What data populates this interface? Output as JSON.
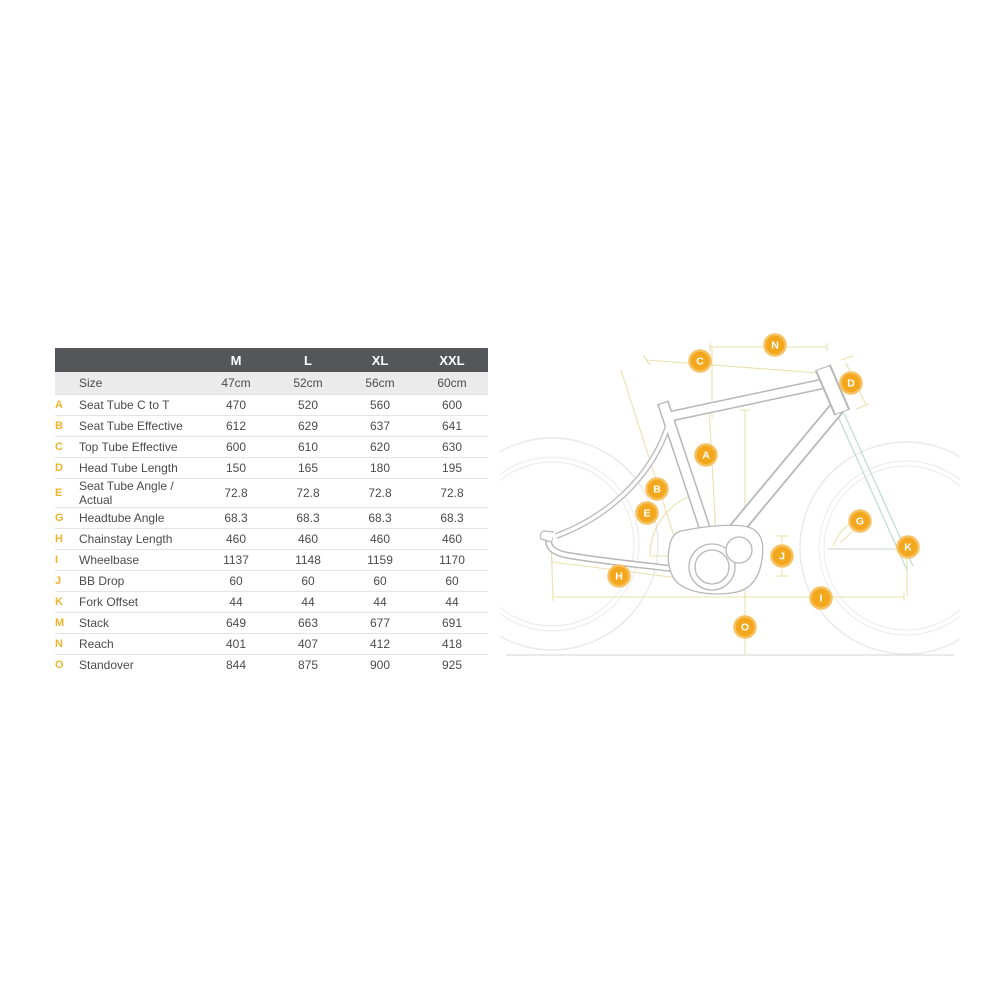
{
  "table": {
    "columns": [
      "M",
      "L",
      "XL",
      "XXL"
    ],
    "size_row": {
      "label": "Size",
      "values": [
        "47cm",
        "52cm",
        "56cm",
        "60cm"
      ]
    },
    "rows": [
      {
        "key": "A",
        "label": "Seat Tube C to T",
        "values": [
          "470",
          "520",
          "560",
          "600"
        ]
      },
      {
        "key": "B",
        "label": "Seat Tube Effective",
        "values": [
          "612",
          "629",
          "637",
          "641"
        ]
      },
      {
        "key": "C",
        "label": "Top Tube Effective",
        "values": [
          "600",
          "610",
          "620",
          "630"
        ]
      },
      {
        "key": "D",
        "label": "Head Tube Length",
        "values": [
          "150",
          "165",
          "180",
          "195"
        ]
      },
      {
        "key": "E",
        "label": "Seat Tube Angle / Actual",
        "values": [
          "72.8",
          "72.8",
          "72.8",
          "72.8"
        ]
      },
      {
        "key": "G",
        "label": "Headtube Angle",
        "values": [
          "68.3",
          "68.3",
          "68.3",
          "68.3"
        ]
      },
      {
        "key": "H",
        "label": "Chainstay Length",
        "values": [
          "460",
          "460",
          "460",
          "460"
        ]
      },
      {
        "key": "I",
        "label": "Wheelbase",
        "values": [
          "1137",
          "1148",
          "1159",
          "1170"
        ]
      },
      {
        "key": "J",
        "label": "BB Drop",
        "values": [
          "60",
          "60",
          "60",
          "60"
        ]
      },
      {
        "key": "K",
        "label": "Fork Offset",
        "values": [
          "44",
          "44",
          "44",
          "44"
        ]
      },
      {
        "key": "M",
        "label": "Stack",
        "values": [
          "649",
          "663",
          "677",
          "691"
        ]
      },
      {
        "key": "N",
        "label": "Reach",
        "values": [
          "401",
          "407",
          "412",
          "418"
        ]
      },
      {
        "key": "O",
        "label": "Standover",
        "values": [
          "844",
          "875",
          "900",
          "925"
        ]
      }
    ]
  },
  "diagram": {
    "badges": [
      {
        "letter": "N"
      },
      {
        "letter": "C"
      },
      {
        "letter": "D"
      },
      {
        "letter": "A"
      },
      {
        "letter": "B"
      },
      {
        "letter": "E"
      },
      {
        "letter": "G"
      },
      {
        "letter": "K"
      },
      {
        "letter": "J"
      },
      {
        "letter": "H"
      },
      {
        "letter": "I"
      },
      {
        "letter": "O"
      }
    ]
  },
  "colors": {
    "header_bg": "#55565a",
    "size_row_bg": "#ebebeb",
    "row_letter_gold": "#edb32f",
    "badge_orange": "#f3a71c",
    "dimension_line": "#e9e2ad",
    "fork_teal": "#c2ded3",
    "frame_outline": "#b7b7ba",
    "text": "#4b4b4d"
  }
}
